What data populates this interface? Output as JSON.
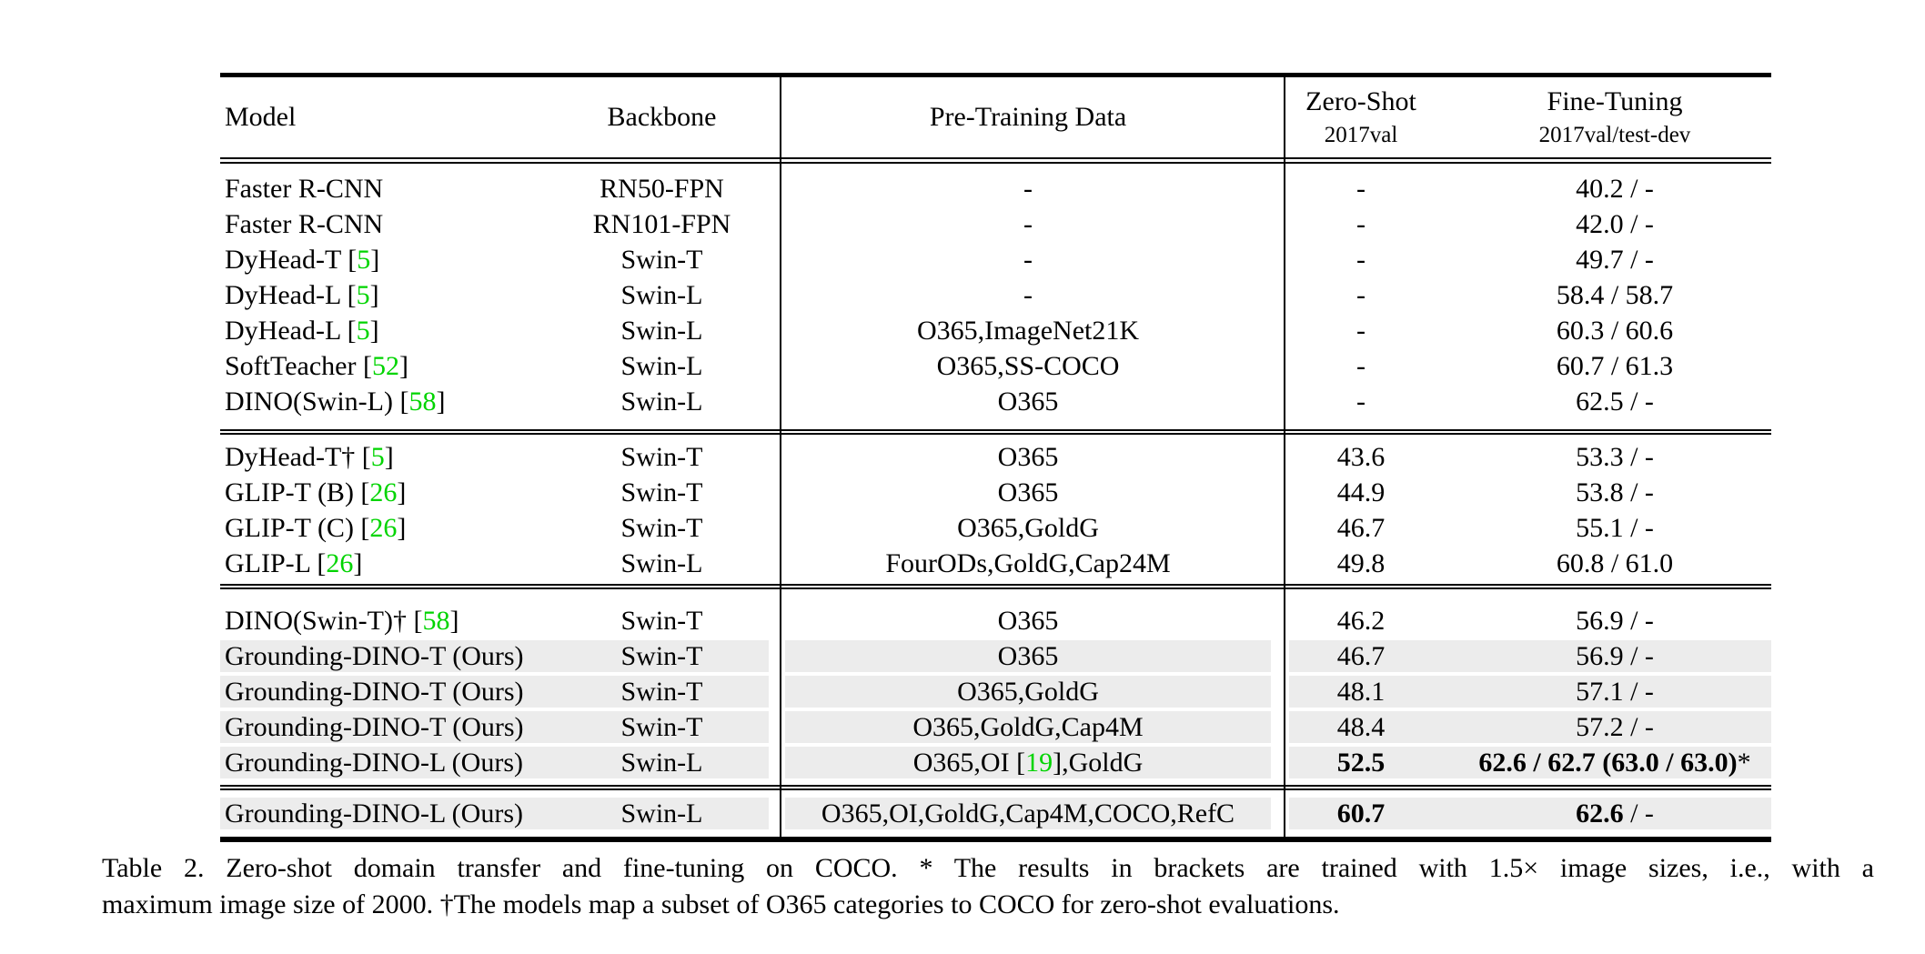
{
  "colors": {
    "citation_green": "#00d400",
    "row_highlight_gray": "#ececec",
    "text": "#000000",
    "background": "#ffffff"
  },
  "table": {
    "header": {
      "model": "Model",
      "backbone": "Backbone",
      "pretrain": "Pre-Training Data",
      "zeroshot_title": "Zero-Shot",
      "zeroshot_sub": "2017val",
      "finetune_title": "Fine-Tuning",
      "finetune_sub": "2017val/test-dev"
    },
    "blocks": [
      {
        "rows": [
          {
            "model": "Faster R-CNN",
            "backbone": "RN50-FPN",
            "pretrain": "-",
            "zeroshot": "-",
            "finetune": "40.2 / -",
            "highlight": false
          },
          {
            "model": "Faster R-CNN",
            "backbone": "RN101-FPN",
            "pretrain": "-",
            "zeroshot": "-",
            "finetune": "42.0 / -",
            "highlight": false
          },
          {
            "model": "DyHead-T [5]",
            "backbone": "Swin-T",
            "pretrain": "-",
            "zeroshot": "-",
            "finetune": "49.7 / -",
            "highlight": false
          },
          {
            "model": "DyHead-L [5]",
            "backbone": "Swin-L",
            "pretrain": "-",
            "zeroshot": "-",
            "finetune": "58.4 / 58.7",
            "highlight": false
          },
          {
            "model": "DyHead-L [5]",
            "backbone": "Swin-L",
            "pretrain": "O365,ImageNet21K",
            "zeroshot": "-",
            "finetune": "60.3 / 60.6",
            "highlight": false
          },
          {
            "model": "SoftTeacher [52]",
            "backbone": "Swin-L",
            "pretrain": "O365,SS-COCO",
            "zeroshot": "-",
            "finetune": "60.7 / 61.3",
            "highlight": false
          },
          {
            "model": "DINO(Swin-L) [58]",
            "backbone": "Swin-L",
            "pretrain": "O365",
            "zeroshot": "-",
            "finetune": "62.5 / -",
            "highlight": false
          }
        ]
      },
      {
        "rows": [
          {
            "model": "DyHead-T† [5]",
            "backbone": "Swin-T",
            "pretrain": "O365",
            "zeroshot": "43.6",
            "finetune": "53.3 / -",
            "highlight": false
          },
          {
            "model": "GLIP-T (B) [26]",
            "backbone": "Swin-T",
            "pretrain": "O365",
            "zeroshot": "44.9",
            "finetune": "53.8 / -",
            "highlight": false
          },
          {
            "model": "GLIP-T (C) [26]",
            "backbone": "Swin-T",
            "pretrain": "O365,GoldG",
            "zeroshot": "46.7",
            "finetune": "55.1 / -",
            "highlight": false
          },
          {
            "model": "GLIP-L [26]",
            "backbone": "Swin-L",
            "pretrain": "FourODs,GoldG,Cap24M",
            "zeroshot": "49.8",
            "finetune": "60.8 / 61.0",
            "highlight": false
          }
        ]
      },
      {
        "rows": [
          {
            "model": "DINO(Swin-T)† [58]",
            "backbone": "Swin-T",
            "pretrain": "O365",
            "zeroshot": "46.2",
            "finetune": "56.9 / -",
            "highlight": false
          },
          {
            "model": "Grounding-DINO-T (Ours)",
            "backbone": "Swin-T",
            "pretrain": "O365",
            "zeroshot": "46.7",
            "finetune": "56.9 / -",
            "highlight": true
          },
          {
            "model": "Grounding-DINO-T (Ours)",
            "backbone": "Swin-T",
            "pretrain": "O365,GoldG",
            "zeroshot": "48.1",
            "finetune": "57.1 / -",
            "highlight": true
          },
          {
            "model": "Grounding-DINO-T (Ours)",
            "backbone": "Swin-T",
            "pretrain": "O365,GoldG,Cap4M",
            "zeroshot": "48.4",
            "finetune": "57.2 / -",
            "highlight": true
          },
          {
            "model": "Grounding-DINO-L (Ours)",
            "backbone": "Swin-L",
            "pretrain": "O365,OI [19],GoldG",
            "zeroshot": "**52.5**",
            "finetune": "**62.6 / 62.7 (63.0 / 63.0)***",
            "highlight": true
          }
        ]
      },
      {
        "rows": [
          {
            "model": "Grounding-DINO-L (Ours)",
            "backbone": "Swin-L",
            "pretrain": "O365,OI,GoldG,Cap4M,COCO,RefC",
            "zeroshot": "**60.7**",
            "finetune": "**62.6** / -",
            "highlight": true
          }
        ]
      }
    ]
  },
  "caption": {
    "line1": "Table 2. Zero-shot domain transfer and fine-tuning on COCO. * The results in brackets are trained with 1.5× image sizes, i.e., with a",
    "line2": "maximum image size of 2000. †The models map a subset of O365 categories to COCO for zero-shot evaluations."
  }
}
